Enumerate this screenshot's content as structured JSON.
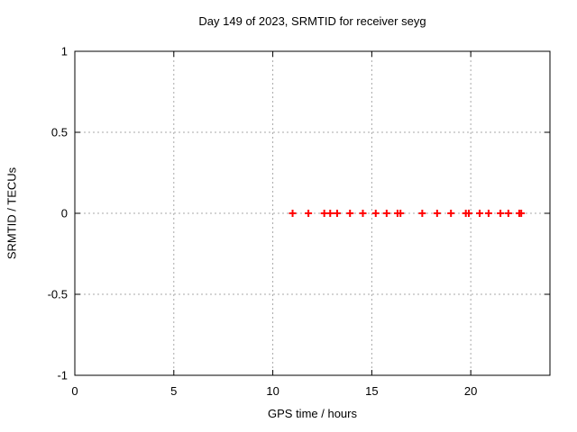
{
  "chart_data": {
    "type": "scatter",
    "title": "Day 149 of 2023, SRMTID for receiver seyg",
    "xlabel": "GPS time / hours",
    "ylabel": "SRMTID / TECUs",
    "xlim": [
      0,
      24
    ],
    "ylim": [
      -1,
      1
    ],
    "x_ticks": [
      0,
      5,
      10,
      15,
      20
    ],
    "y_ticks": [
      -1,
      -0.5,
      0,
      0.5,
      1
    ],
    "grid": true,
    "legend": "none",
    "marker": "plus",
    "series": [
      {
        "name": "SRMTID",
        "x": [
          11.0,
          11.8,
          12.6,
          12.9,
          13.25,
          13.9,
          14.55,
          15.2,
          15.75,
          16.3,
          16.45,
          17.55,
          18.3,
          19.0,
          19.75,
          19.9,
          20.45,
          20.9,
          21.5,
          21.9,
          22.45,
          22.55
        ],
        "y": [
          0,
          0,
          0,
          0,
          0,
          0,
          0,
          0,
          0,
          0,
          0,
          0,
          0,
          0,
          0,
          0,
          0,
          0,
          0,
          0,
          0,
          0
        ]
      }
    ]
  },
  "colors": {
    "marker": "#ff0000",
    "grid": "#a8a8a8",
    "border": "#000000",
    "text": "#000000",
    "background": "#ffffff"
  }
}
